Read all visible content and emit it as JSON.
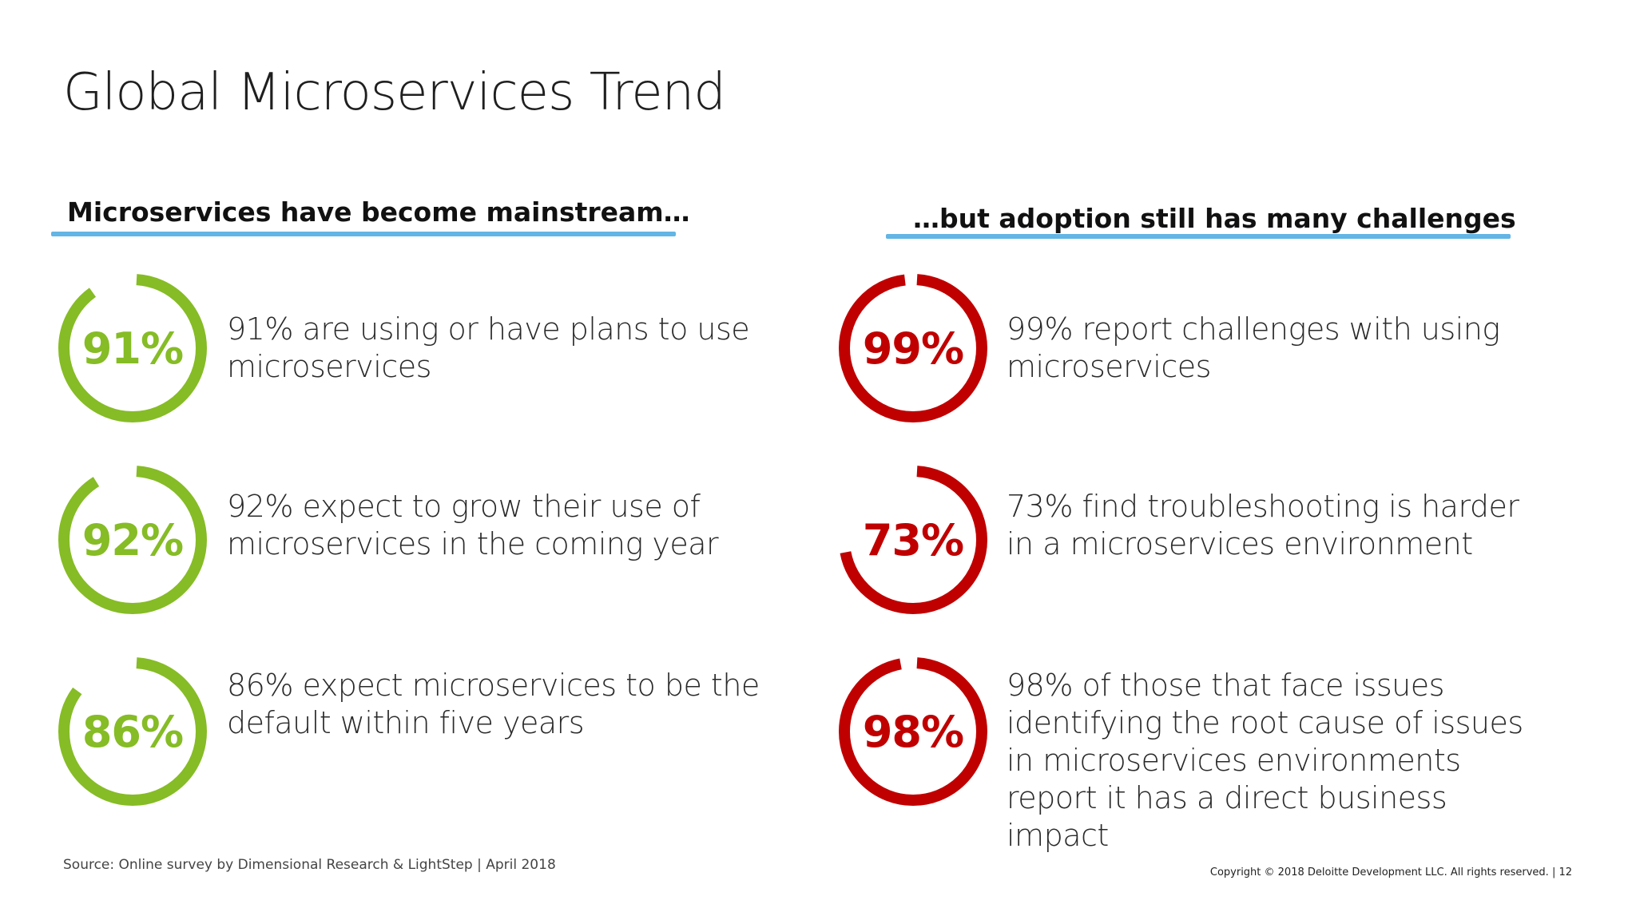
{
  "slide": {
    "title": "Global Microservices Trend"
  },
  "left_column": {
    "heading": "Microservices have become mainstream…",
    "accent_color": "#86bc25",
    "stats": [
      {
        "value_label": "91%",
        "percent": 91,
        "text": "91% are using or have plans to use microservices"
      },
      {
        "value_label": "92%",
        "percent": 92,
        "text": "92% expect to grow their use of microservices in the coming year"
      },
      {
        "value_label": "86%",
        "percent": 86,
        "text": "86% expect microservices to be the default within five years"
      }
    ]
  },
  "right_column": {
    "heading": "…but adoption still has many challenges",
    "accent_color": "#c00000",
    "stats": [
      {
        "value_label": "99%",
        "percent": 99,
        "text": "99% report challenges with using microservices"
      },
      {
        "value_label": "73%",
        "percent": 73,
        "text": "73% find troubleshooting is harder in a microservices environment"
      },
      {
        "value_label": "98%",
        "percent": 98,
        "text": "98% of those that face issues identifying the root cause of issues in microservices environments report it has a direct business impact"
      }
    ]
  },
  "colors": {
    "rule_blue": "#62b5e5"
  },
  "footer": {
    "source": "Source: Online survey by Dimensional Research & LightStep | April 2018",
    "copyright": "Copyright © 2018 Deloitte Development LLC. All rights reserved.  |   12"
  }
}
